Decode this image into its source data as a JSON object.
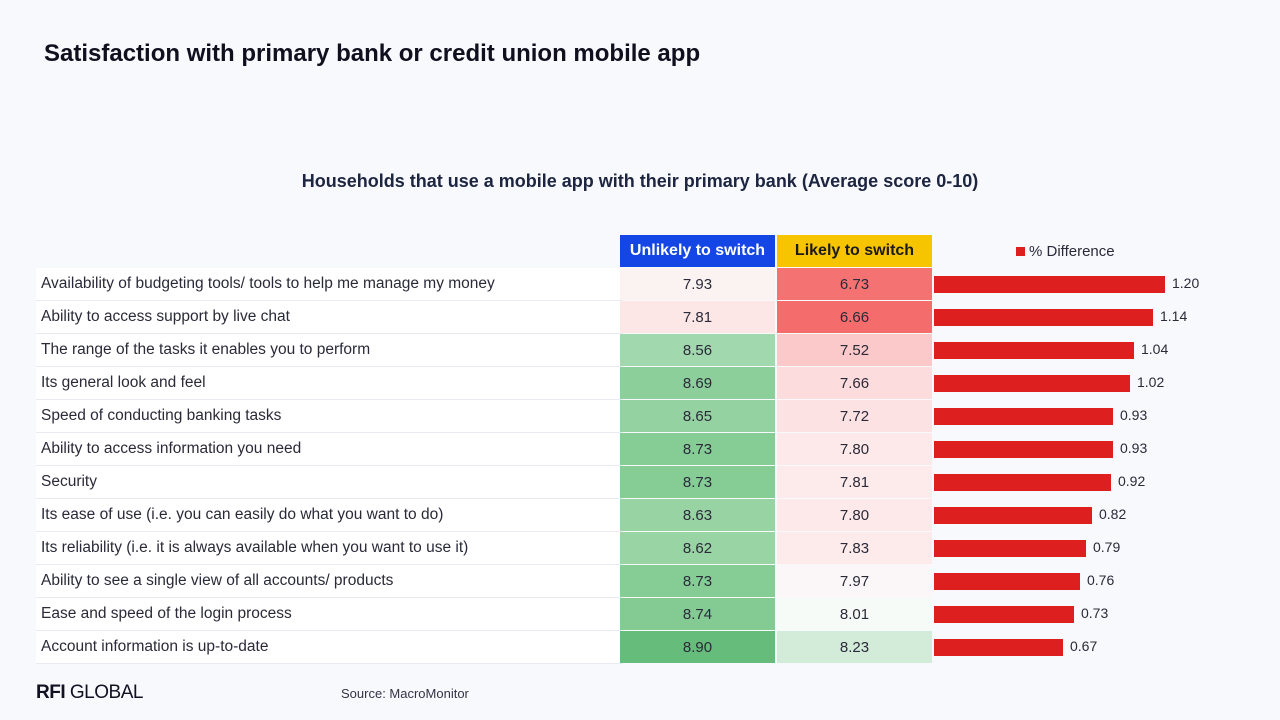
{
  "title": "Satisfaction with primary bank or credit union mobile app",
  "logo": {
    "bold": "RFI",
    "rest": "GLOBAL"
  },
  "source": "Source: MacroMonitor",
  "colors": {
    "unlikely_header": "#1446e6",
    "likely_header": "#f7c400",
    "bar": "#dd1f1f"
  },
  "chart_data": {
    "type": "table",
    "title": "Households that use a mobile app with their primary bank (Average score 0-10)",
    "columns": [
      "Unlikely to switch",
      "Likely to switch"
    ],
    "legend": "% Difference",
    "diff_max": 1.3,
    "rows": [
      {
        "label": "Availability of budgeting tools/ tools to help me manage my money",
        "unlikely": "7.93",
        "likely": "6.73",
        "diff": "1.20",
        "unlikely_color": "#fbf2f2",
        "likely_color": "#f57272"
      },
      {
        "label": "Ability to access support by live chat",
        "unlikely": "7.81",
        "likely": "6.66",
        "diff": "1.14",
        "unlikely_color": "#fce6e6",
        "likely_color": "#f46c6c"
      },
      {
        "label": "The range of the tasks it enables you to perform",
        "unlikely": "8.56",
        "likely": "7.52",
        "diff": "1.04",
        "unlikely_color": "#a2d8ad",
        "likely_color": "#fbc9c9"
      },
      {
        "label": "Its general look and feel",
        "unlikely": "8.69",
        "likely": "7.66",
        "diff": "1.02",
        "unlikely_color": "#8ccf9b",
        "likely_color": "#fcdcdc"
      },
      {
        "label": "Speed of conducting banking tasks",
        "unlikely": "8.65",
        "likely": "7.72",
        "diff": "0.93",
        "unlikely_color": "#94d2a1",
        "likely_color": "#fce2e2"
      },
      {
        "label": "Ability to access information you need",
        "unlikely": "8.73",
        "likely": "7.80",
        "diff": "0.93",
        "unlikely_color": "#86cc95",
        "likely_color": "#fde9e9"
      },
      {
        "label": "Security",
        "unlikely": "8.73",
        "likely": "7.81",
        "diff": "0.92",
        "unlikely_color": "#86cc95",
        "likely_color": "#fdeaea"
      },
      {
        "label": "Its ease of use (i.e. you can easily do what you want to do)",
        "unlikely": "8.63",
        "likely": "7.80",
        "diff": "0.82",
        "unlikely_color": "#97d3a3",
        "likely_color": "#fde9e9"
      },
      {
        "label": "Its reliability (i.e. it is always available when you want to use it)",
        "unlikely": "8.62",
        "likely": "7.83",
        "diff": "0.79",
        "unlikely_color": "#99d4a5",
        "likely_color": "#fdebeb"
      },
      {
        "label": "Ability to see a single view of all accounts/ products",
        "unlikely": "8.73",
        "likely": "7.97",
        "diff": "0.76",
        "unlikely_color": "#86cc95",
        "likely_color": "#fbf7f8"
      },
      {
        "label": "Ease and speed of the login process",
        "unlikely": "8.74",
        "likely": "8.01",
        "diff": "0.73",
        "unlikely_color": "#84cb93",
        "likely_color": "#f7fbf8"
      },
      {
        "label": "Account information is up-to-date",
        "unlikely": "8.90",
        "likely": "8.23",
        "diff": "0.67",
        "unlikely_color": "#66bd7b",
        "likely_color": "#d3ecda"
      }
    ]
  }
}
